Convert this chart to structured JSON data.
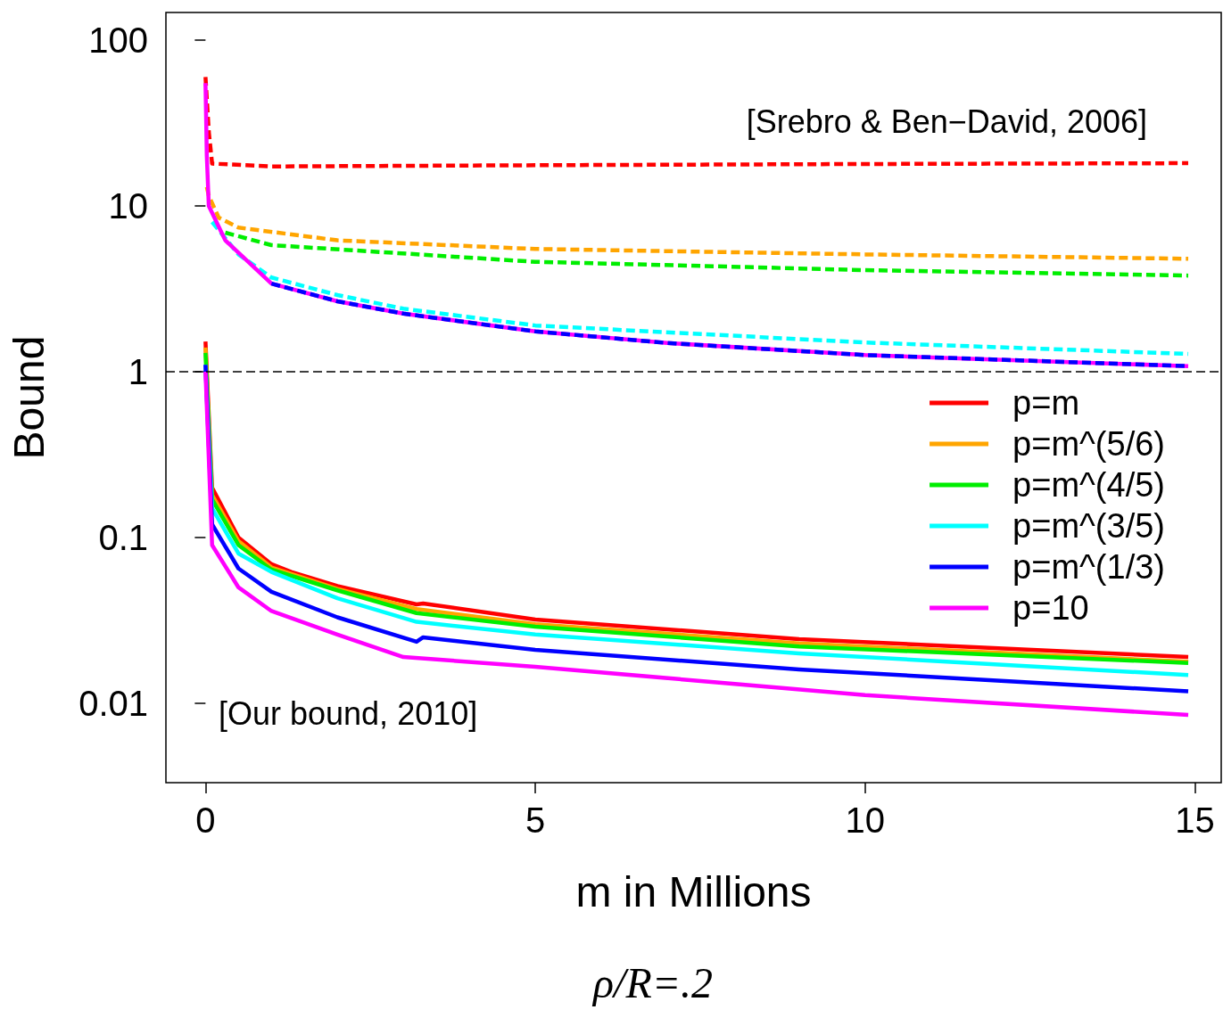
{
  "chart_data": {
    "type": "line",
    "xlabel": "m in Millions",
    "ylabel": "Bound",
    "annotations": [
      "[Srebro & Ben−David, 2006]",
      "[Our bound, 2010]",
      "ρ/R=.2"
    ],
    "xlim": [
      -0.6,
      15.4
    ],
    "xticks": [
      0,
      5,
      10,
      15
    ],
    "ylim": [
      0.00332,
      146.8
    ],
    "yticks": [
      0.01,
      0.1,
      1,
      10,
      100
    ],
    "log": "y",
    "grid": false,
    "legend": "right",
    "marker": "none",
    "ref_lines": [
      {
        "axis": "y",
        "value": 1,
        "color": "#000000",
        "line_style": "dashed"
      }
    ],
    "series": [
      {
        "color": "#ff0000",
        "line_style": "dashed",
        "x": [
          0,
          0.05,
          0.1,
          1,
          5,
          10,
          14.9
        ],
        "values": [
          60,
          28,
          18,
          17.3,
          17.6,
          17.9,
          18.1
        ]
      },
      {
        "color": "#ffa500",
        "line_style": "dashed",
        "x": [
          0.02,
          0.05,
          0.2,
          0.5,
          2,
          5,
          10,
          14.9
        ],
        "values": [
          13,
          11.5,
          8.5,
          7.4,
          6.2,
          5.5,
          5.1,
          4.8
        ]
      },
      {
        "color": "#00ee00",
        "line_style": "dashed",
        "x": [
          0.3,
          1,
          5,
          10,
          14.9
        ],
        "values": [
          6.9,
          5.8,
          4.6,
          4.1,
          3.8
        ]
      },
      {
        "color": "#00ffff",
        "line_style": "dashed",
        "x": [
          0.1,
          0.5,
          1,
          2,
          3,
          5,
          10,
          14.9
        ],
        "values": [
          8,
          5.1,
          3.7,
          2.9,
          2.4,
          1.9,
          1.5,
          1.28
        ]
      },
      {
        "color": "#ff00ff",
        "line_style": "solid",
        "x": [
          0,
          0.02,
          0.05,
          0.3,
          1,
          2,
          3,
          5,
          7,
          10,
          14.9
        ],
        "values": [
          55,
          20,
          10,
          6.2,
          3.4,
          2.66,
          2.24,
          1.75,
          1.49,
          1.26,
          1.08
        ]
      },
      {
        "color": "#0000ff",
        "line_style": "dashed",
        "x": [
          1,
          2,
          3,
          5,
          7,
          10,
          14.9
        ],
        "values": [
          3.4,
          2.66,
          2.24,
          1.75,
          1.49,
          1.26,
          1.08
        ]
      },
      {
        "name": "p=m",
        "color": "#ff0000",
        "line_style": "solid",
        "x": [
          0,
          0.1,
          0.5,
          1,
          1.3,
          2,
          3.2,
          3.3,
          5,
          9,
          14.9
        ],
        "values": [
          1.52,
          0.2,
          0.1,
          0.069,
          0.062,
          0.051,
          0.0395,
          0.04,
          0.032,
          0.0244,
          0.019
        ]
      },
      {
        "name": "p=m^(5/6)",
        "color": "#ffa500",
        "line_style": "solid",
        "x": [
          0,
          0.1,
          0.5,
          1,
          2,
          3.2,
          5,
          9,
          14.9
        ],
        "values": [
          1.4,
          0.18,
          0.095,
          0.066,
          0.049,
          0.037,
          0.03,
          0.023,
          0.0178
        ]
      },
      {
        "name": "p=m^(4/5)",
        "color": "#00ee00",
        "line_style": "solid",
        "x": [
          0,
          0.1,
          0.5,
          1,
          2,
          3.2,
          5,
          9,
          14.9
        ],
        "values": [
          1.3,
          0.17,
          0.09,
          0.064,
          0.048,
          0.035,
          0.029,
          0.022,
          0.0175
        ]
      },
      {
        "name": "p=m^(3/5)",
        "color": "#00ffff",
        "line_style": "solid",
        "x": [
          0,
          0.1,
          0.5,
          1,
          2,
          3.2,
          5,
          9,
          14.9
        ],
        "values": [
          1.1,
          0.15,
          0.08,
          0.062,
          0.043,
          0.031,
          0.026,
          0.02,
          0.0148
        ]
      },
      {
        "name": "p=m^(1/3)",
        "color": "#0000ff",
        "line_style": "solid",
        "x": [
          0,
          0.1,
          0.5,
          1,
          2,
          3.2,
          3.3,
          5,
          9,
          14.9
        ],
        "values": [
          1.1,
          0.12,
          0.065,
          0.047,
          0.033,
          0.0235,
          0.025,
          0.021,
          0.016,
          0.0118
        ]
      },
      {
        "name": "p=10",
        "color": "#ff00ff",
        "line_style": "solid",
        "x": [
          0,
          0.1,
          0.5,
          1,
          2,
          3,
          5,
          10,
          14.9
        ],
        "values": [
          1.0,
          0.09,
          0.05,
          0.036,
          0.026,
          0.019,
          0.0166,
          0.0112,
          0.0085
        ]
      }
    ]
  }
}
